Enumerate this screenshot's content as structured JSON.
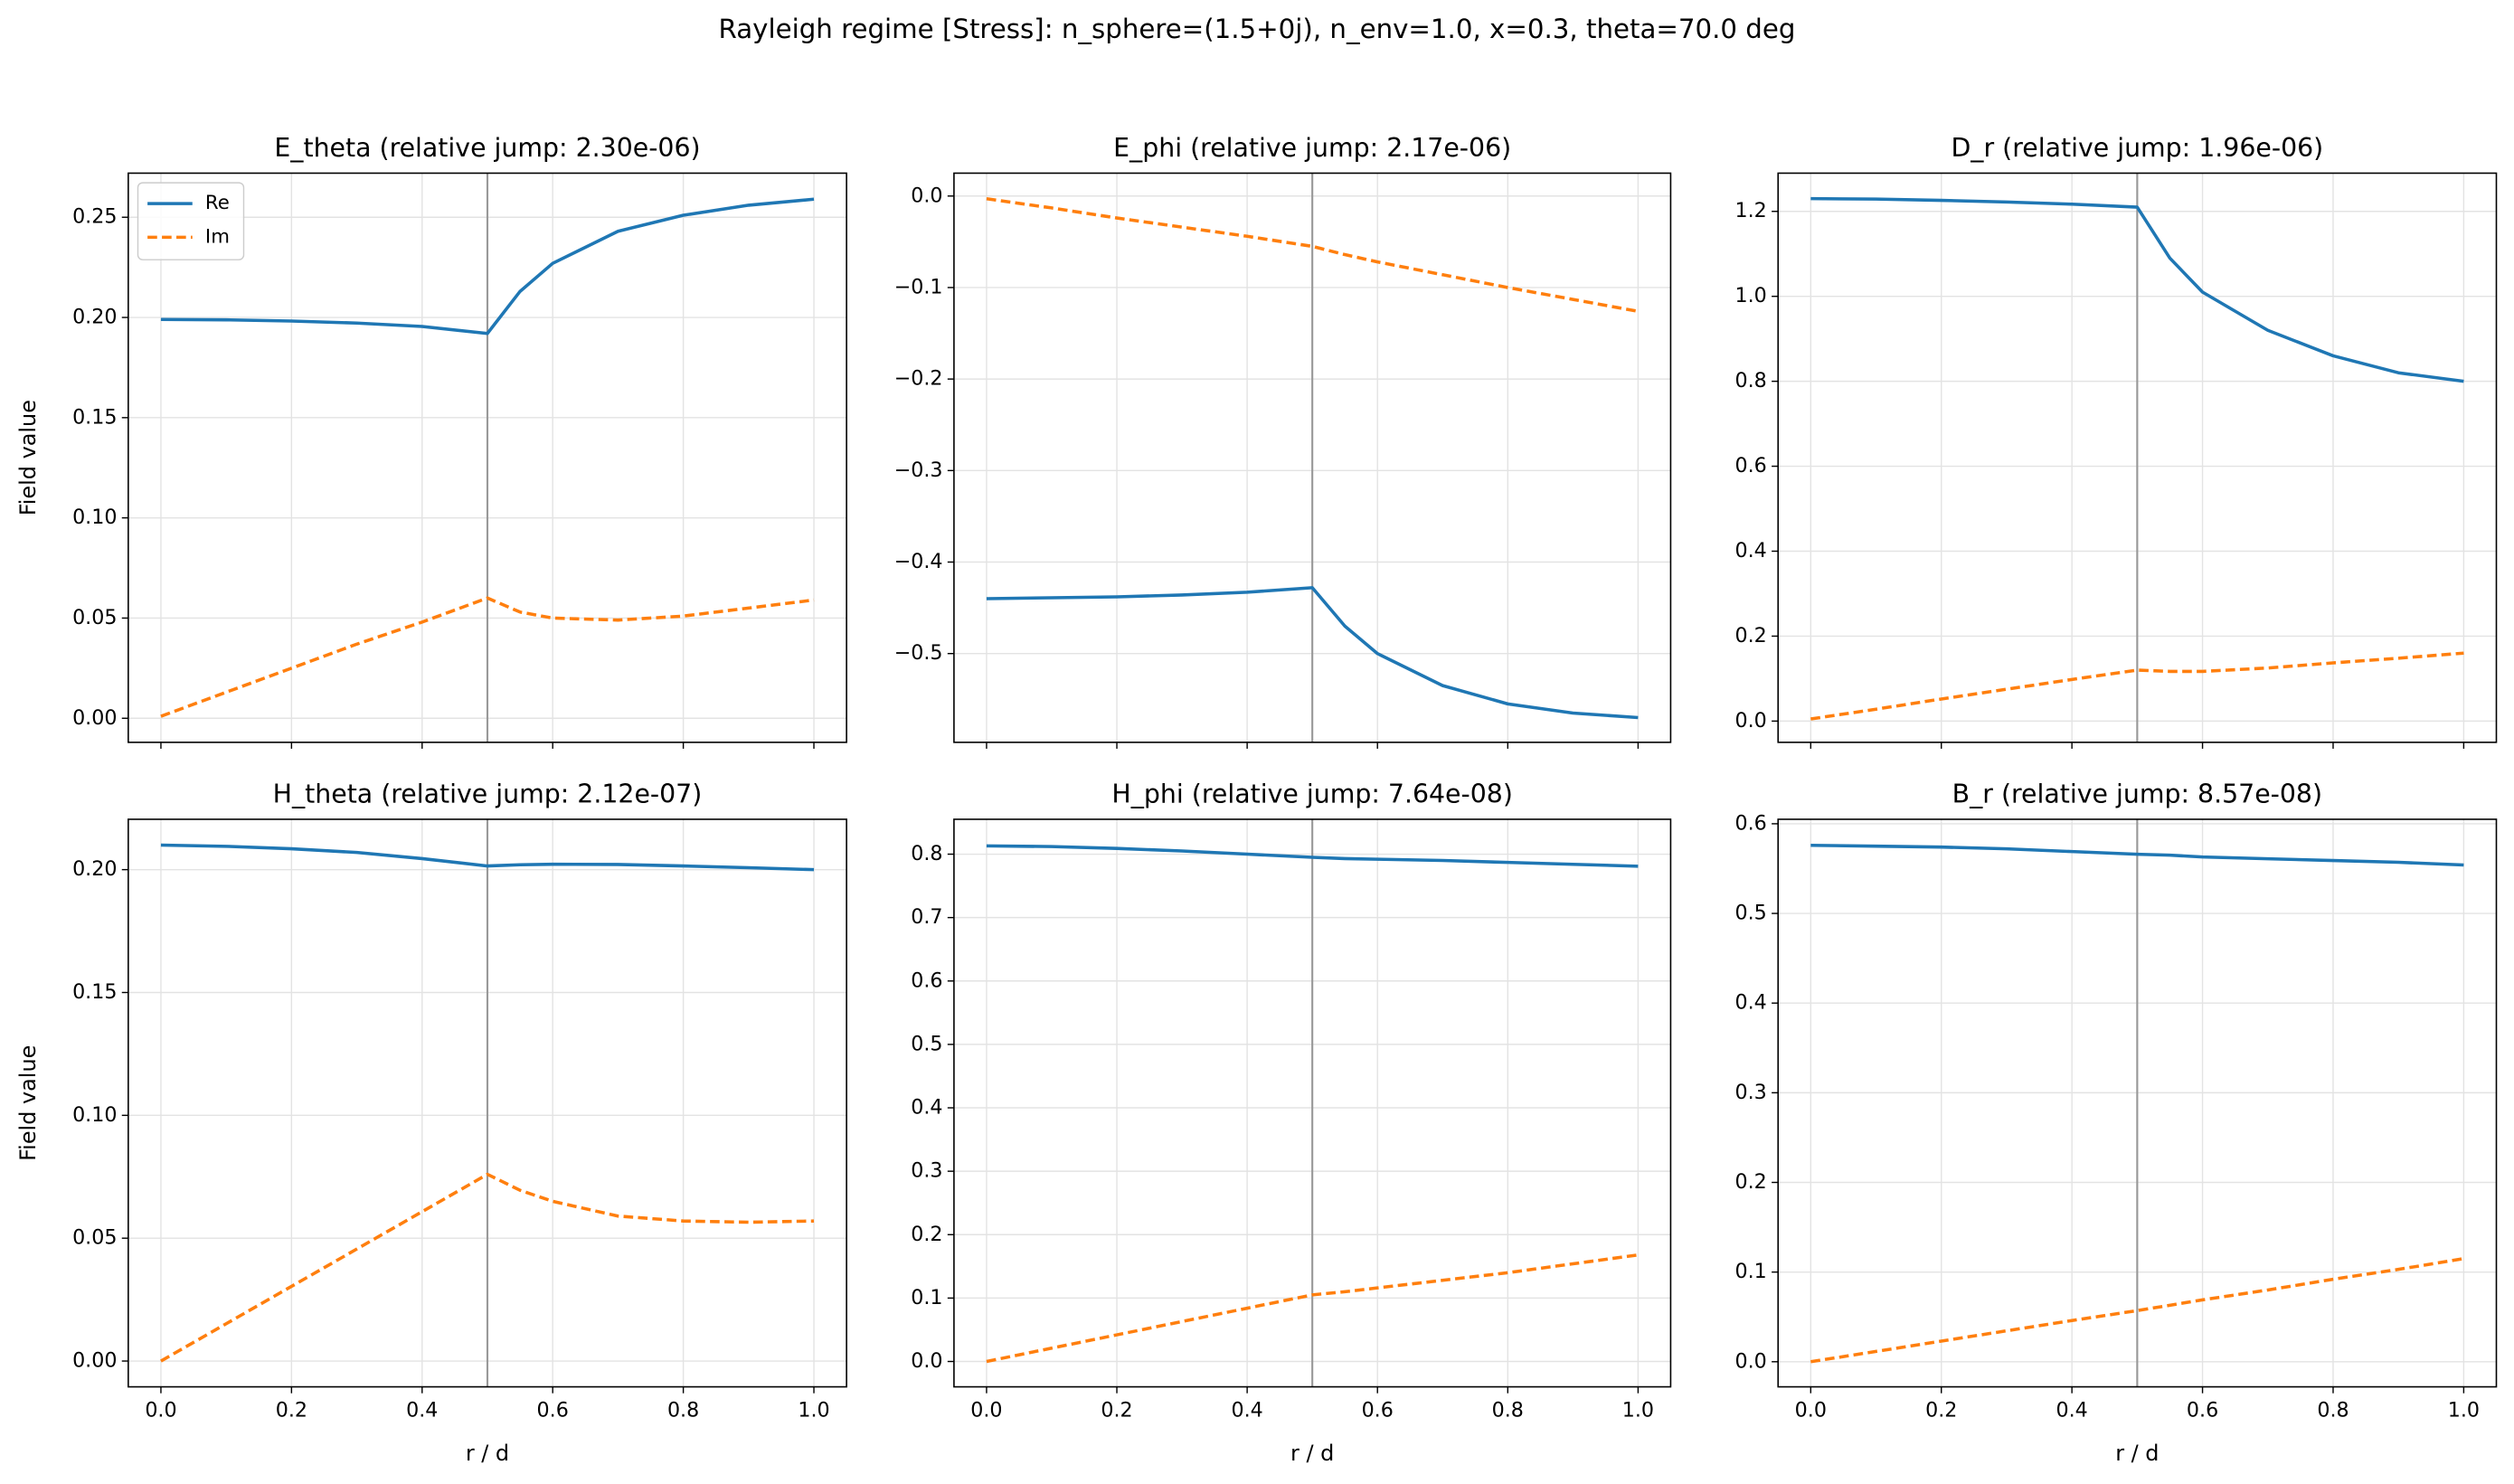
{
  "title": "Rayleigh regime [Stress]: n_sphere=(1.5+0j), n_env=1.0, x=0.3, theta=70.0 deg",
  "chart_data": [
    {
      "type": "line",
      "title": "E_theta (relative jump: 2.30e-06)",
      "ylabel": "Field value",
      "legend": "upper left",
      "grid": true,
      "vline": 0.5,
      "xticklabels": false,
      "x": [
        0,
        0.1,
        0.2,
        0.3,
        0.4,
        0.5,
        0.55,
        0.6,
        0.7,
        0.8,
        0.9,
        1.0
      ],
      "series": [
        {
          "name": "Re",
          "color": "#1f77b4",
          "dash": "solid",
          "values": [
            0.199,
            0.1988,
            0.1982,
            0.1972,
            0.1955,
            0.192,
            0.213,
            0.227,
            0.243,
            0.251,
            0.256,
            0.259
          ]
        },
        {
          "name": "Im",
          "color": "#ff7f0e",
          "dash": "dashed",
          "values": [
            0.001,
            0.013,
            0.025,
            0.037,
            0.048,
            0.06,
            0.053,
            0.05,
            0.049,
            0.051,
            0.055,
            0.059
          ]
        }
      ],
      "xlim": [
        -0.05,
        1.05
      ],
      "xticks": [
        0,
        0.2,
        0.4,
        0.6,
        0.8,
        1.0
      ],
      "ylim": [
        -0.012,
        0.272
      ],
      "yticks": [
        {
          "value": 0,
          "label": "0.00"
        },
        {
          "value": 0.05,
          "label": "0.05"
        },
        {
          "value": 0.1,
          "label": "0.10"
        },
        {
          "value": 0.15,
          "label": "0.15"
        },
        {
          "value": 0.2,
          "label": "0.20"
        },
        {
          "value": 0.25,
          "label": "0.25"
        }
      ]
    },
    {
      "type": "line",
      "title": "E_phi (relative jump: 2.17e-06)",
      "grid": true,
      "vline": 0.5,
      "xticklabels": false,
      "x": [
        0,
        0.1,
        0.2,
        0.3,
        0.4,
        0.5,
        0.55,
        0.6,
        0.7,
        0.8,
        0.9,
        1.0
      ],
      "series": [
        {
          "name": "Re",
          "color": "#1f77b4",
          "dash": "solid",
          "values": [
            -0.44,
            -0.439,
            -0.438,
            -0.436,
            -0.433,
            -0.428,
            -0.47,
            -0.5,
            -0.535,
            -0.555,
            -0.565,
            -0.57
          ]
        },
        {
          "name": "Im",
          "color": "#ff7f0e",
          "dash": "dashed",
          "values": [
            -0.003,
            -0.013,
            -0.024,
            -0.034,
            -0.044,
            -0.055,
            -0.064,
            -0.072,
            -0.086,
            -0.1,
            -0.113,
            -0.126
          ]
        }
      ],
      "xlim": [
        -0.05,
        1.05
      ],
      "xticks": [
        0,
        0.2,
        0.4,
        0.6,
        0.8,
        1.0
      ],
      "ylim": [
        -0.597,
        0.025
      ],
      "yticks": [
        {
          "value": 0,
          "label": "0.0"
        },
        {
          "value": -0.1,
          "label": "−0.1"
        },
        {
          "value": -0.2,
          "label": "−0.2"
        },
        {
          "value": -0.3,
          "label": "−0.3"
        },
        {
          "value": -0.4,
          "label": "−0.4"
        },
        {
          "value": -0.5,
          "label": "−0.5"
        }
      ]
    },
    {
      "type": "line",
      "title": "D_r (relative jump: 1.96e-06)",
      "grid": true,
      "vline": 0.5,
      "xticklabels": false,
      "x": [
        0,
        0.1,
        0.2,
        0.3,
        0.4,
        0.5,
        0.55,
        0.6,
        0.7,
        0.8,
        0.9,
        1.0
      ],
      "series": [
        {
          "name": "Re",
          "color": "#1f77b4",
          "dash": "solid",
          "values": [
            1.23,
            1.229,
            1.226,
            1.222,
            1.217,
            1.21,
            1.09,
            1.01,
            0.92,
            0.86,
            0.82,
            0.8
          ]
        },
        {
          "name": "Im",
          "color": "#ff7f0e",
          "dash": "dashed",
          "values": [
            0.005,
            0.028,
            0.052,
            0.075,
            0.098,
            0.12,
            0.117,
            0.117,
            0.125,
            0.137,
            0.148,
            0.16
          ]
        }
      ],
      "xlim": [
        -0.05,
        1.05
      ],
      "xticks": [
        0,
        0.2,
        0.4,
        0.6,
        0.8,
        1.0
      ],
      "ylim": [
        -0.05,
        1.29
      ],
      "yticks": [
        {
          "value": 0,
          "label": "0.0"
        },
        {
          "value": 0.2,
          "label": "0.2"
        },
        {
          "value": 0.4,
          "label": "0.4"
        },
        {
          "value": 0.6,
          "label": "0.6"
        },
        {
          "value": 0.8,
          "label": "0.8"
        },
        {
          "value": 1.0,
          "label": "1.0"
        },
        {
          "value": 1.2,
          "label": "1.2"
        }
      ]
    },
    {
      "type": "line",
      "title": "H_theta (relative jump: 2.12e-07)",
      "ylabel": "Field value",
      "xlabel": "r / d",
      "grid": true,
      "vline": 0.5,
      "xticklabels": true,
      "x": [
        0,
        0.1,
        0.2,
        0.3,
        0.4,
        0.5,
        0.55,
        0.6,
        0.7,
        0.8,
        0.9,
        1.0
      ],
      "series": [
        {
          "name": "Re",
          "color": "#1f77b4",
          "dash": "solid",
          "values": [
            0.21,
            0.2095,
            0.2085,
            0.207,
            0.2045,
            0.2015,
            0.202,
            0.2022,
            0.2021,
            0.2015,
            0.2008,
            0.2
          ]
        },
        {
          "name": "Im",
          "color": "#ff7f0e",
          "dash": "dashed",
          "values": [
            0,
            0.0152,
            0.0304,
            0.0456,
            0.0608,
            0.076,
            0.0695,
            0.065,
            0.059,
            0.057,
            0.0565,
            0.057
          ]
        }
      ],
      "xlim": [
        -0.05,
        1.05
      ],
      "xticks": [
        {
          "value": 0,
          "label": "0.0"
        },
        {
          "value": 0.2,
          "label": "0.2"
        },
        {
          "value": 0.4,
          "label": "0.4"
        },
        {
          "value": 0.6,
          "label": "0.6"
        },
        {
          "value": 0.8,
          "label": "0.8"
        },
        {
          "value": 1.0,
          "label": "1.0"
        }
      ],
      "ylim": [
        -0.0105,
        0.2205
      ],
      "yticks": [
        {
          "value": 0,
          "label": "0.00"
        },
        {
          "value": 0.05,
          "label": "0.05"
        },
        {
          "value": 0.1,
          "label": "0.10"
        },
        {
          "value": 0.15,
          "label": "0.15"
        },
        {
          "value": 0.2,
          "label": "0.20"
        }
      ]
    },
    {
      "type": "line",
      "title": "H_phi (relative jump: 7.64e-08)",
      "xlabel": "r / d",
      "grid": true,
      "vline": 0.5,
      "xticklabels": true,
      "x": [
        0,
        0.1,
        0.2,
        0.3,
        0.4,
        0.5,
        0.55,
        0.6,
        0.7,
        0.8,
        0.9,
        1.0
      ],
      "series": [
        {
          "name": "Re",
          "color": "#1f77b4",
          "dash": "solid",
          "values": [
            0.813,
            0.812,
            0.809,
            0.805,
            0.8,
            0.795,
            0.793,
            0.792,
            0.79,
            0.787,
            0.784,
            0.781
          ]
        },
        {
          "name": "Im",
          "color": "#ff7f0e",
          "dash": "dashed",
          "values": [
            0,
            0.021,
            0.042,
            0.063,
            0.084,
            0.105,
            0.11,
            0.116,
            0.128,
            0.14,
            0.154,
            0.168
          ]
        }
      ],
      "xlim": [
        -0.05,
        1.05
      ],
      "xticks": [
        {
          "value": 0,
          "label": "0.0"
        },
        {
          "value": 0.2,
          "label": "0.2"
        },
        {
          "value": 0.4,
          "label": "0.4"
        },
        {
          "value": 0.6,
          "label": "0.6"
        },
        {
          "value": 0.8,
          "label": "0.8"
        },
        {
          "value": 1.0,
          "label": "1.0"
        }
      ],
      "ylim": [
        -0.04,
        0.855
      ],
      "yticks": [
        {
          "value": 0,
          "label": "0.0"
        },
        {
          "value": 0.1,
          "label": "0.1"
        },
        {
          "value": 0.2,
          "label": "0.2"
        },
        {
          "value": 0.3,
          "label": "0.3"
        },
        {
          "value": 0.4,
          "label": "0.4"
        },
        {
          "value": 0.5,
          "label": "0.5"
        },
        {
          "value": 0.6,
          "label": "0.6"
        },
        {
          "value": 0.7,
          "label": "0.7"
        },
        {
          "value": 0.8,
          "label": "0.8"
        }
      ]
    },
    {
      "type": "line",
      "title": "B_r (relative jump: 8.57e-08)",
      "xlabel": "r / d",
      "grid": true,
      "vline": 0.5,
      "xticklabels": true,
      "x": [
        0,
        0.1,
        0.2,
        0.3,
        0.4,
        0.5,
        0.55,
        0.6,
        0.7,
        0.8,
        0.9,
        1.0
      ],
      "series": [
        {
          "name": "Re",
          "color": "#1f77b4",
          "dash": "solid",
          "values": [
            0.576,
            0.575,
            0.574,
            0.572,
            0.569,
            0.566,
            0.565,
            0.563,
            0.561,
            0.559,
            0.557,
            0.554
          ]
        },
        {
          "name": "Im",
          "color": "#ff7f0e",
          "dash": "dashed",
          "values": [
            0,
            0.0115,
            0.023,
            0.0345,
            0.046,
            0.057,
            0.063,
            0.069,
            0.08,
            0.092,
            0.103,
            0.115
          ]
        }
      ],
      "xlim": [
        -0.05,
        1.05
      ],
      "xticks": [
        {
          "value": 0,
          "label": "0.0"
        },
        {
          "value": 0.2,
          "label": "0.2"
        },
        {
          "value": 0.4,
          "label": "0.4"
        },
        {
          "value": 0.6,
          "label": "0.6"
        },
        {
          "value": 0.8,
          "label": "0.8"
        },
        {
          "value": 1.0,
          "label": "1.0"
        }
      ],
      "ylim": [
        -0.028,
        0.605
      ],
      "yticks": [
        {
          "value": 0,
          "label": "0.0"
        },
        {
          "value": 0.1,
          "label": "0.1"
        },
        {
          "value": 0.2,
          "label": "0.2"
        },
        {
          "value": 0.3,
          "label": "0.3"
        },
        {
          "value": 0.4,
          "label": "0.4"
        },
        {
          "value": 0.5,
          "label": "0.5"
        },
        {
          "value": 0.6,
          "label": "0.6"
        }
      ]
    }
  ]
}
